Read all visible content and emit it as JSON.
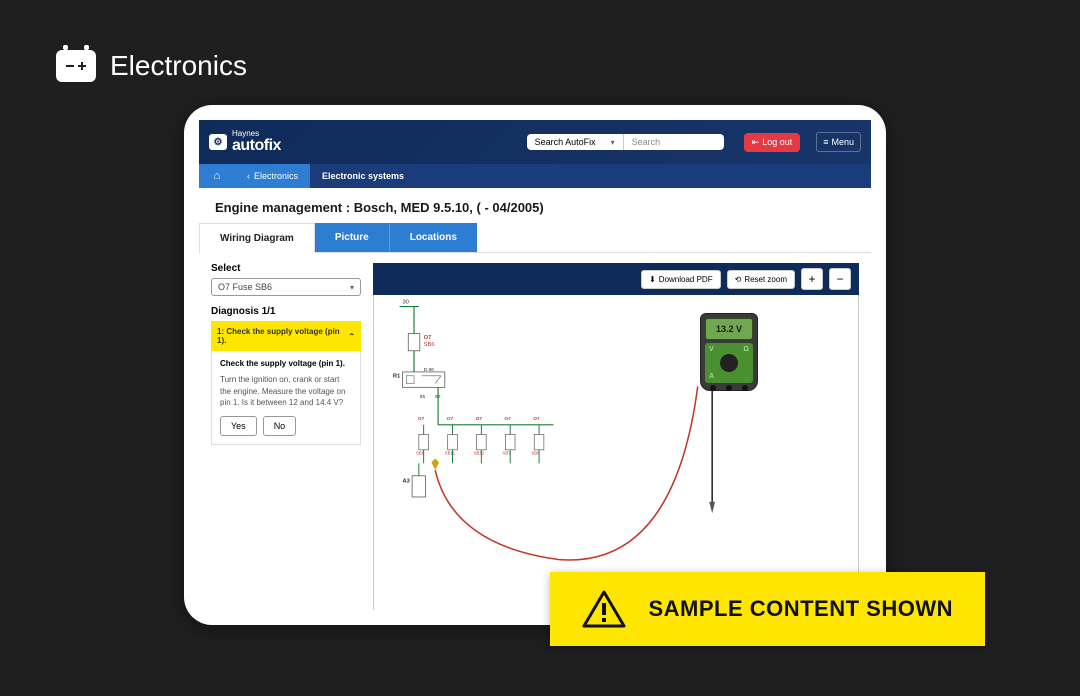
{
  "header_title": "Electronics",
  "app": {
    "logo_small": "Haynes",
    "logo_big": "autofix",
    "search_dropdown": "Search AutoFix",
    "search_placeholder": "Search",
    "logout": "Log out",
    "menu": "Menu"
  },
  "breadcrumb": {
    "back": "Electronics",
    "current": "Electronic systems"
  },
  "page_title": "Engine management :  Bosch, MED 9.5.10, ( - 04/2005)",
  "tabs": {
    "wiring": "Wiring Diagram",
    "picture": "Picture",
    "locations": "Locations"
  },
  "select_label": "Select",
  "select_value": "O7  Fuse  SB6",
  "diagnosis_label": "Diagnosis 1/1",
  "accordion": {
    "header": "1: Check the supply voltage (pin 1).",
    "body_title": "Check the supply voltage (pin 1).",
    "body_text": "Turn the ignition on, crank or start the engine. Measure the voltage on pin 1. Is it between 12 and 14.4 V?",
    "yes": "Yes",
    "no": "No"
  },
  "viewer": {
    "download": "Download PDF",
    "reset": "Reset zoom",
    "plus": "+",
    "minus": "−"
  },
  "multimeter_reading": "13.2 V",
  "banner_text": "SAMPLE CONTENT SHOWN",
  "diagram": {
    "top_num": "30",
    "o7": "O7",
    "sb6": "SB6",
    "r1": "R1",
    "d_86": "D 86",
    "n85": "85",
    "n87": "87",
    "a3": "A3",
    "fuses": [
      {
        "l1": "O7",
        "l2": "SB6"
      },
      {
        "l1": "O7",
        "l2": "SB11"
      },
      {
        "l1": "O7",
        "l2": "SB12"
      },
      {
        "l1": "O7",
        "l2": "SB7"
      },
      {
        "l1": "O7",
        "l2": "SB8"
      }
    ],
    "colors": {
      "wire_green": "#1a7a3a",
      "wire_red": "#c0392b",
      "label_red": "#c0392b",
      "box": "#555"
    }
  }
}
